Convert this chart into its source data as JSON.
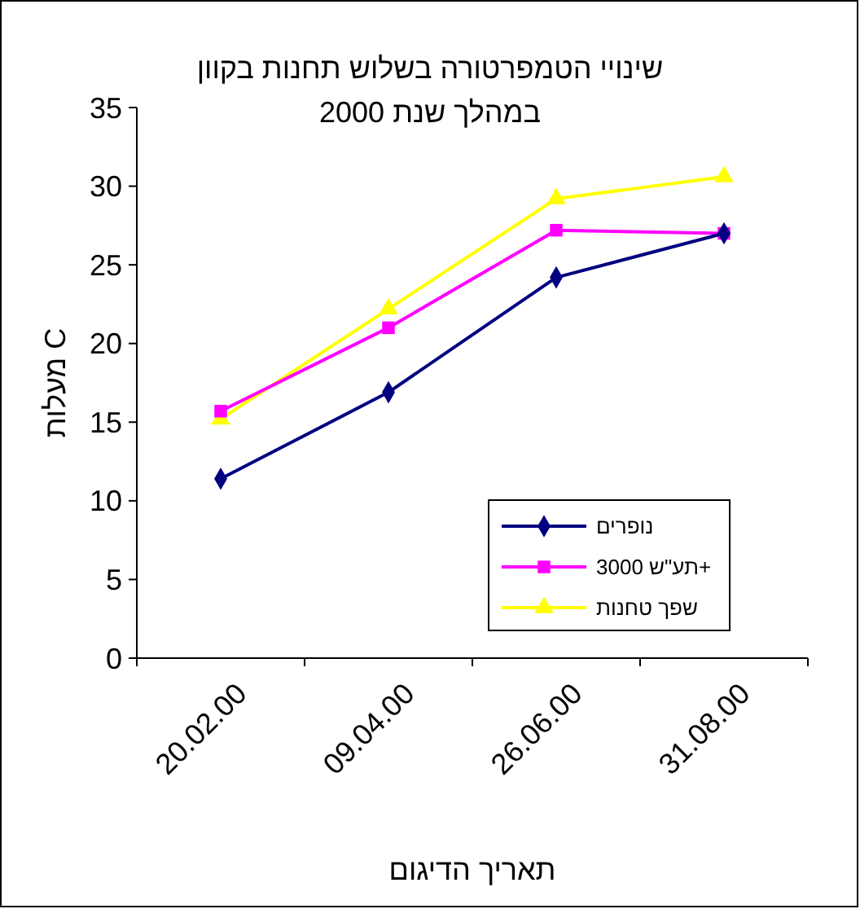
{
  "chart_data": {
    "type": "line",
    "title": "שינויי הטמפרטורה בשלוש תחנות בקוון",
    "subtitle": "במהלך שנת 2000",
    "xlabel": "תאריך הדיגום",
    "ylabel": "מעלות C",
    "categories": [
      "20.02.00",
      "09.04.00",
      "26.06.00",
      "31.08.00"
    ],
    "series": [
      {
        "name": "נופרים",
        "color": "#000080",
        "marker": "diamond",
        "values": [
          11.4,
          16.9,
          24.2,
          27.0
        ]
      },
      {
        "name": "תע\"ש 3000+",
        "color": "#ff00ff",
        "marker": "square",
        "values": [
          15.7,
          21.0,
          27.2,
          27.0
        ]
      },
      {
        "name": "שפך טחנות",
        "color": "#ffff00",
        "marker": "triangle",
        "values": [
          15.2,
          22.2,
          29.2,
          30.6
        ]
      }
    ],
    "ylim": [
      0,
      35
    ],
    "yticks": [
      0,
      5,
      10,
      15,
      20,
      25,
      30,
      35
    ],
    "grid": false,
    "legend": "bottom right"
  }
}
